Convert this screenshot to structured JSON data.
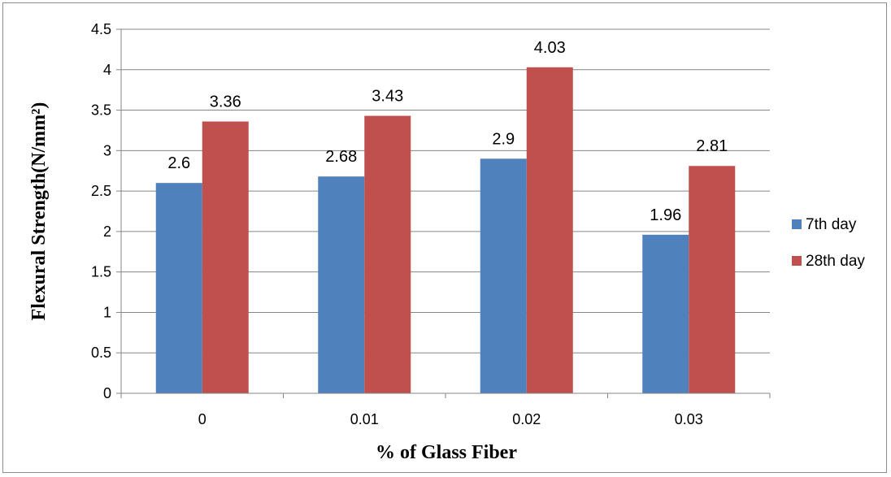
{
  "chart_data": {
    "type": "bar",
    "categories": [
      "0",
      "0.01",
      "0.02",
      "0.03"
    ],
    "series": [
      {
        "name": "7th day",
        "values": [
          2.6,
          2.68,
          2.9,
          1.96
        ],
        "color": "#4f81bd"
      },
      {
        "name": "28th day",
        "values": [
          3.36,
          3.43,
          4.03,
          2.81
        ],
        "color": "#c0504d"
      }
    ],
    "data_labels": [
      [
        "2.6",
        "2.68",
        "2.9",
        "1.96"
      ],
      [
        "3.36",
        "3.43",
        "4.03",
        "2.81"
      ]
    ],
    "xlabel": "% of Glass Fiber",
    "ylabel": "Flexural Strength(N/mm²)",
    "ylim": [
      0,
      4.5
    ],
    "yticks": [
      "0",
      "0.5",
      "1",
      "1.5",
      "2",
      "2.5",
      "3",
      "3.5",
      "4",
      "4.5"
    ],
    "grid": true,
    "legend": "right",
    "gridline_color": "#868686"
  }
}
